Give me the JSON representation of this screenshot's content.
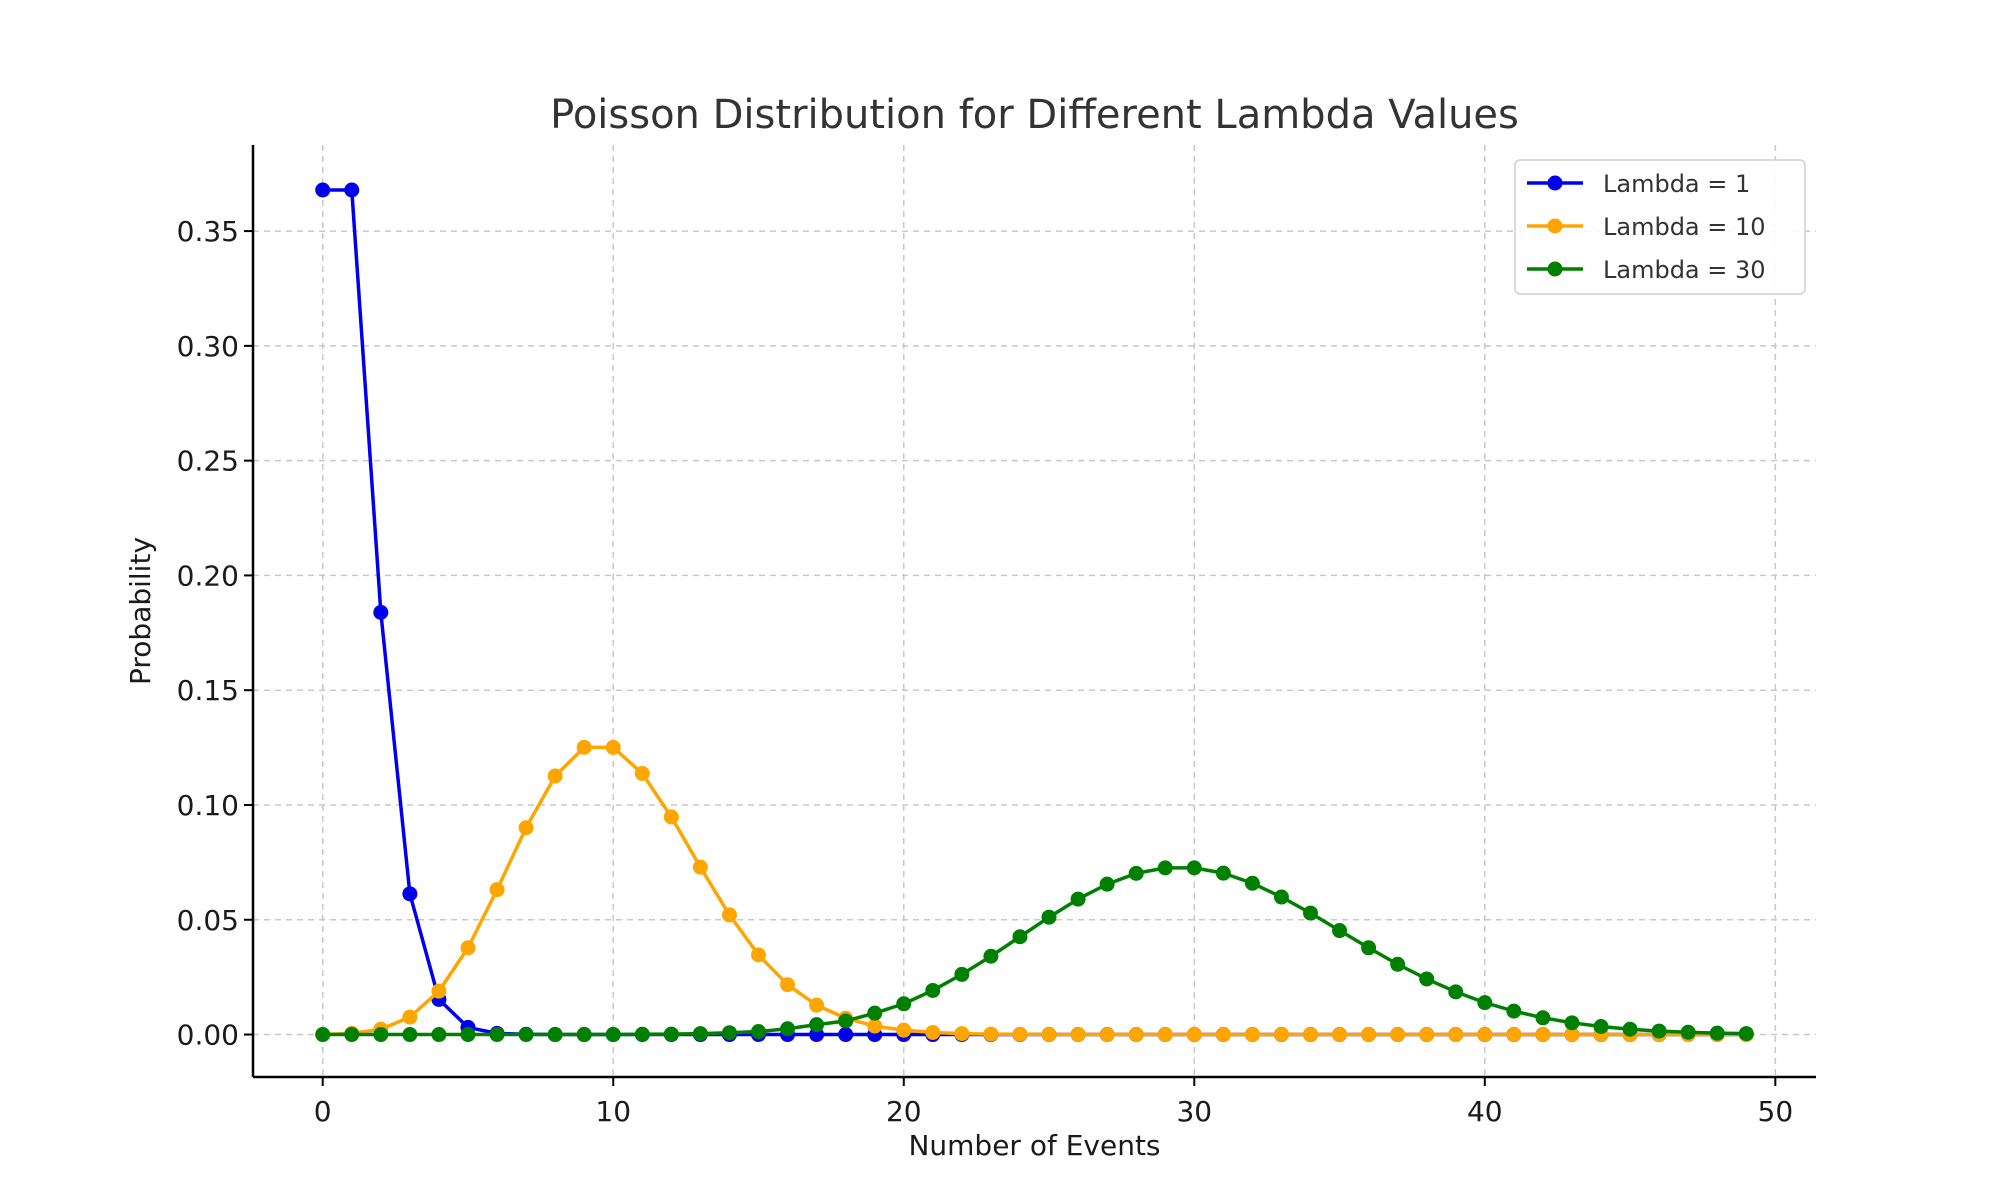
{
  "chart_data": {
    "type": "line",
    "title": "Poisson Distribution for Different Lambda Values",
    "xlabel": "Number of Events",
    "ylabel": "Probability",
    "xlim": [
      -2.4,
      51.4
    ],
    "ylim": [
      -0.0185,
      0.3875
    ],
    "xticks": [
      0,
      10,
      20,
      30,
      40,
      50
    ],
    "xtick_labels": [
      "0",
      "10",
      "20",
      "30",
      "40",
      "50"
    ],
    "yticks": [
      0.0,
      0.05,
      0.1,
      0.15,
      0.2,
      0.25,
      0.3,
      0.35
    ],
    "ytick_labels": [
      "0.00",
      "0.05",
      "0.10",
      "0.15",
      "0.20",
      "0.25",
      "0.30",
      "0.35"
    ],
    "grid": true,
    "legend_position": "top-right",
    "x": [
      0,
      1,
      2,
      3,
      4,
      5,
      6,
      7,
      8,
      9,
      10,
      11,
      12,
      13,
      14,
      15,
      16,
      17,
      18,
      19,
      20,
      21,
      22,
      23,
      24,
      25,
      26,
      27,
      28,
      29,
      30,
      31,
      32,
      33,
      34,
      35,
      36,
      37,
      38,
      39,
      40,
      41,
      42,
      43,
      44,
      45,
      46,
      47,
      48,
      49
    ],
    "series": [
      {
        "name": "Lambda = 1",
        "color": "#0000ee",
        "values": [
          0.3679,
          0.3679,
          0.1839,
          0.0613,
          0.0153,
          0.0031,
          0.0005,
          0.0001,
          0.0,
          0.0,
          0.0,
          0.0,
          0.0,
          0.0,
          0.0,
          0.0,
          0.0,
          0.0,
          0.0,
          0.0,
          0.0,
          0.0,
          0.0,
          0.0,
          0.0,
          0.0,
          0.0,
          0.0,
          0.0,
          0.0,
          0.0,
          0.0,
          0.0,
          0.0,
          0.0,
          0.0,
          0.0,
          0.0,
          0.0,
          0.0,
          0.0,
          0.0,
          0.0,
          0.0,
          0.0,
          0.0,
          0.0,
          0.0,
          0.0,
          0.0
        ]
      },
      {
        "name": "Lambda = 10",
        "color": "#ffa500",
        "values": [
          0.0,
          0.0005,
          0.0023,
          0.0076,
          0.0189,
          0.0378,
          0.0631,
          0.0901,
          0.1126,
          0.1251,
          0.1251,
          0.1137,
          0.0948,
          0.0729,
          0.0521,
          0.0347,
          0.0217,
          0.0128,
          0.0071,
          0.0037,
          0.0019,
          0.0009,
          0.0004,
          0.0002,
          0.0001,
          0.0,
          0.0,
          0.0,
          0.0,
          0.0,
          0.0,
          0.0,
          0.0,
          0.0,
          0.0,
          0.0,
          0.0,
          0.0,
          0.0,
          0.0,
          0.0,
          0.0,
          0.0,
          0.0,
          0.0,
          0.0,
          0.0,
          0.0,
          0.0,
          0.0
        ]
      },
      {
        "name": "Lambda = 30",
        "color": "#008000",
        "values": [
          0.0,
          0.0,
          0.0,
          0.0,
          0.0,
          0.0,
          0.0,
          0.0,
          0.0,
          0.0,
          0.0,
          0.0001,
          0.0002,
          0.0004,
          0.0008,
          0.0013,
          0.0025,
          0.0043,
          0.0059,
          0.0093,
          0.0134,
          0.0192,
          0.0262,
          0.0341,
          0.0426,
          0.0511,
          0.059,
          0.0655,
          0.0702,
          0.0726,
          0.0726,
          0.0703,
          0.0659,
          0.0599,
          0.0529,
          0.0453,
          0.0378,
          0.0306,
          0.0242,
          0.0186,
          0.0139,
          0.0102,
          0.0073,
          0.0051,
          0.0035,
          0.0023,
          0.0015,
          0.001,
          0.0006,
          0.0004
        ]
      }
    ]
  }
}
